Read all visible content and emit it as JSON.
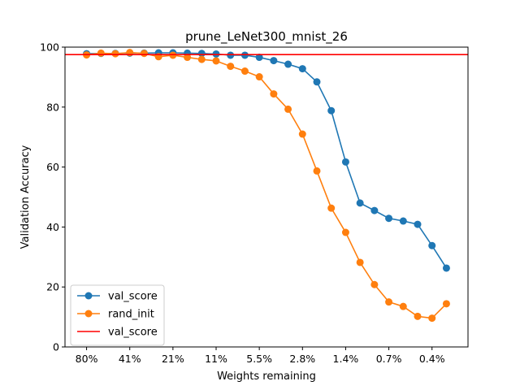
{
  "chart_data": {
    "type": "line",
    "title": "prune_LeNet300_mnist_26",
    "xlabel": "Weights remaining",
    "ylabel": "Validation Accuracy",
    "ylim": [
      0,
      100
    ],
    "yticks": [
      0,
      20,
      40,
      60,
      80,
      100
    ],
    "xlim": [
      -1.5,
      26.5
    ],
    "xtick_positions": [
      0,
      3,
      6,
      9,
      12,
      15,
      18,
      21,
      24
    ],
    "xtick_labels": [
      "80%",
      "41%",
      "21%",
      "11%",
      "5.5%",
      "2.8%",
      "1.4%",
      "0.7%",
      "0.4%"
    ],
    "legend_position": "lower-left",
    "grid": false,
    "series": [
      {
        "name": "val_score",
        "color": "#1f77b4",
        "marker": "circle",
        "x": [
          0,
          1,
          2,
          3,
          4,
          5,
          6,
          7,
          8,
          9,
          10,
          11,
          12,
          13,
          14,
          15,
          16,
          17,
          18,
          19,
          20,
          21,
          22,
          23,
          24,
          25
        ],
        "values": [
          97.8,
          97.9,
          97.9,
          98.0,
          98.0,
          98.1,
          98.1,
          98.0,
          97.9,
          97.7,
          97.3,
          97.3,
          96.6,
          95.5,
          94.3,
          92.8,
          88.4,
          78.8,
          61.7,
          48.0,
          45.5,
          42.9,
          42.0,
          40.9,
          33.8,
          26.3
        ]
      },
      {
        "name": "rand_init",
        "color": "#ff7f0e",
        "marker": "circle",
        "x": [
          0,
          1,
          2,
          3,
          4,
          5,
          6,
          7,
          8,
          9,
          10,
          11,
          12,
          13,
          14,
          15,
          16,
          17,
          18,
          19,
          20,
          21,
          22,
          23,
          24,
          25
        ],
        "values": [
          97.4,
          98.0,
          97.8,
          98.2,
          97.9,
          96.8,
          97.3,
          96.6,
          95.9,
          95.4,
          93.6,
          92.0,
          90.1,
          84.4,
          79.3,
          71.0,
          58.7,
          46.3,
          38.2,
          28.2,
          20.8,
          15.0,
          13.5,
          10.2,
          9.6,
          14.4
        ]
      }
    ],
    "hlines": [
      {
        "name": "val_score",
        "color": "#ff0000",
        "y": 97.5
      }
    ]
  }
}
